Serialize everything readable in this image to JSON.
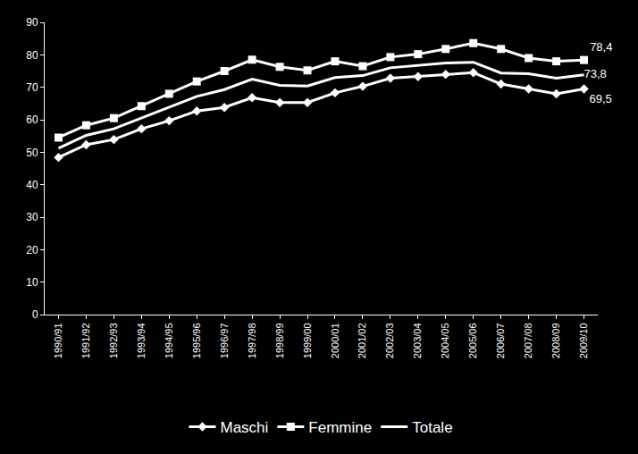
{
  "chart_data": {
    "type": "line",
    "categories": [
      "1990/91",
      "1991/92",
      "1992/93",
      "1993/94",
      "1994/95",
      "1995/96",
      "1996/97",
      "1997/98",
      "1998/99",
      "1999/00",
      "2000/01",
      "2001/02",
      "2002/03",
      "2003/04",
      "2004/05",
      "2005/06",
      "2006/07",
      "2007/08",
      "2008/09",
      "2009/10"
    ],
    "series": [
      {
        "name": "Maschi",
        "color": "#ffffff",
        "marker": "diamond",
        "values": [
          48.4,
          52.3,
          53.9,
          57.2,
          59.7,
          62.7,
          63.8,
          66.8,
          65.3,
          65.3,
          68.3,
          70.3,
          72.8,
          73.3,
          74.0,
          74.5,
          71.0,
          69.5,
          68.0,
          69.5
        ],
        "value_labels": [
          null,
          null,
          null,
          null,
          null,
          null,
          null,
          null,
          null,
          null,
          null,
          null,
          null,
          null,
          null,
          null,
          null,
          null,
          null,
          "69,5"
        ]
      },
      {
        "name": "Femmine",
        "color": "#ffffff",
        "marker": "square",
        "values": [
          54.5,
          58.3,
          60.5,
          64.2,
          68.0,
          71.8,
          75.0,
          78.5,
          76.3,
          75.2,
          78.0,
          76.5,
          79.3,
          80.2,
          81.8,
          83.6,
          81.8,
          79.0,
          78.0,
          78.4
        ],
        "value_labels": [
          null,
          null,
          null,
          null,
          null,
          null,
          null,
          null,
          null,
          null,
          null,
          null,
          null,
          null,
          null,
          null,
          null,
          null,
          null,
          "78,4"
        ]
      },
      {
        "name": "Totale",
        "color": "#ffffff",
        "marker": "none",
        "values": [
          51.2,
          55.2,
          57.2,
          60.5,
          63.8,
          67.2,
          69.3,
          72.5,
          70.6,
          70.4,
          73.0,
          73.6,
          76.0,
          76.7,
          77.5,
          77.7,
          74.4,
          74.2,
          72.8,
          73.8
        ],
        "value_labels": [
          null,
          null,
          null,
          null,
          null,
          null,
          null,
          null,
          null,
          null,
          null,
          null,
          null,
          null,
          null,
          null,
          null,
          null,
          null,
          "73,8"
        ]
      }
    ],
    "ylim": [
      0,
      90
    ],
    "yticks": [
      0,
      10,
      20,
      30,
      40,
      50,
      60,
      70,
      80,
      90
    ],
    "grid": false,
    "legend": "bottom",
    "data_labels": true
  }
}
